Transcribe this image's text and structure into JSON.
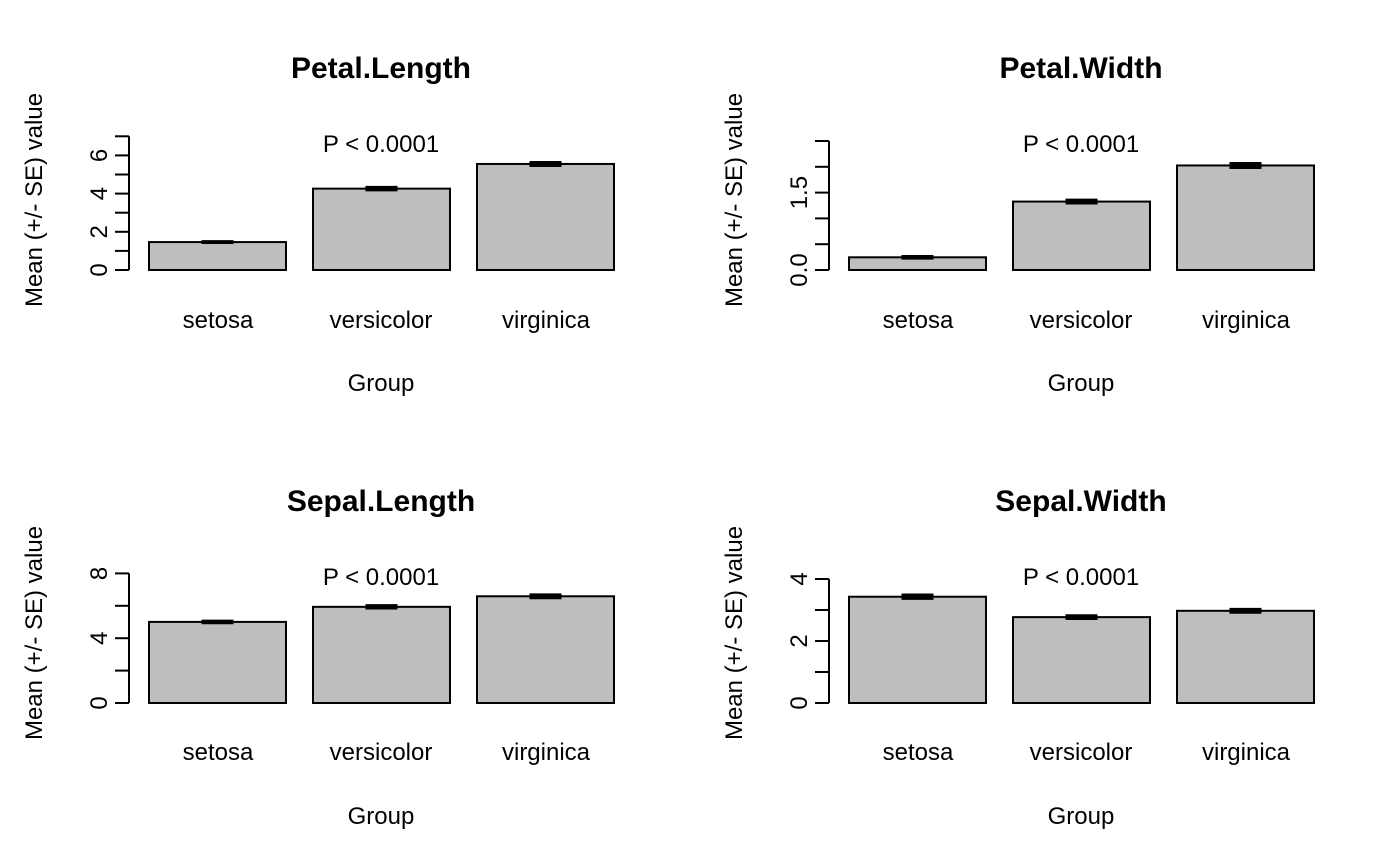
{
  "chart_data": [
    {
      "type": "bar",
      "title": "Petal.Length",
      "xlabel": "Group",
      "ylabel": "Mean (+/- SE) value",
      "annotation": "P < 0.0001",
      "categories": [
        "setosa",
        "versicolor",
        "virginica"
      ],
      "values": [
        1.462,
        4.26,
        5.552
      ],
      "se": [
        0.025,
        0.066,
        0.078
      ],
      "ylim": [
        0,
        7
      ],
      "yticks": [
        0,
        1,
        2,
        3,
        4,
        5,
        6,
        7
      ],
      "yticklabels": [
        {
          "value": 0,
          "label": "0"
        },
        {
          "value": 2,
          "label": "2"
        },
        {
          "value": 4,
          "label": "4"
        },
        {
          "value": 6,
          "label": "6"
        }
      ]
    },
    {
      "type": "bar",
      "title": "Petal.Width",
      "xlabel": "Group",
      "ylabel": "Mean (+/- SE) value",
      "annotation": "P < 0.0001",
      "categories": [
        "setosa",
        "versicolor",
        "virginica"
      ],
      "values": [
        0.246,
        1.326,
        2.026
      ],
      "se": [
        0.015,
        0.028,
        0.039
      ],
      "ylim": [
        0,
        2.5
      ],
      "yticks": [
        0,
        0.5,
        1,
        1.5,
        2,
        2.5
      ],
      "yticklabels": [
        {
          "value": 0,
          "label": "0.0"
        },
        {
          "value": 1.5,
          "label": "1.5"
        }
      ]
    },
    {
      "type": "bar",
      "title": "Sepal.Length",
      "xlabel": "Group",
      "ylabel": "Mean (+/- SE) value",
      "annotation": "P < 0.0001",
      "categories": [
        "setosa",
        "versicolor",
        "virginica"
      ],
      "values": [
        5.006,
        5.936,
        6.588
      ],
      "se": [
        0.05,
        0.073,
        0.09
      ],
      "ylim": [
        0,
        8
      ],
      "yticks": [
        0,
        2,
        4,
        6,
        8
      ],
      "yticklabels": [
        {
          "value": 0,
          "label": "0"
        },
        {
          "value": 4,
          "label": "4"
        },
        {
          "value": 8,
          "label": "8"
        }
      ]
    },
    {
      "type": "bar",
      "title": "Sepal.Width",
      "xlabel": "Group",
      "ylabel": "Mean (+/- SE) value",
      "annotation": "P < 0.0001",
      "categories": [
        "setosa",
        "versicolor",
        "virginica"
      ],
      "values": [
        3.428,
        2.77,
        2.974
      ],
      "se": [
        0.054,
        0.044,
        0.046
      ],
      "ylim": [
        0,
        4
      ],
      "yticks": [
        0,
        1,
        2,
        3,
        4
      ],
      "yticklabels": [
        {
          "value": 0,
          "label": "0"
        },
        {
          "value": 2,
          "label": "2"
        },
        {
          "value": 4,
          "label": "4"
        }
      ]
    }
  ]
}
